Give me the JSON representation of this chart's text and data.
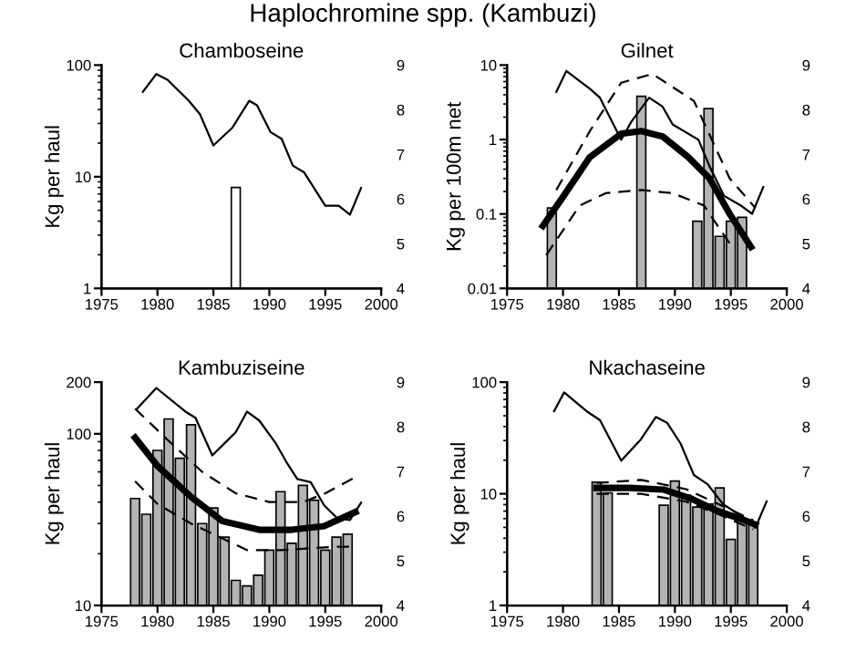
{
  "chart_data": [
    {
      "type": "bar",
      "title": "Haplochromine spp. (Kambuzi)",
      "subtitle": "Chamboseine",
      "ylabel": "Kg per haul",
      "log": "y",
      "xlim": [
        1975,
        2000
      ],
      "xticks": [
        1975,
        1980,
        1985,
        1990,
        1995,
        2000
      ],
      "ylim": [
        1,
        100
      ],
      "yticks": [
        1,
        10,
        100
      ],
      "y2lim": [
        4,
        9
      ],
      "y2ticks": [
        4,
        5,
        6,
        7,
        8,
        9
      ],
      "series": [
        {
          "color": "#ffffff",
          "x": [
            1987
          ],
          "values": [
            8
          ]
        },
        {
          "type": "line",
          "axis": "y2",
          "color": "#000000",
          "x": [
            1978.7,
            1979.9,
            1980.9,
            1982.8,
            1983.8,
            1985.0,
            1986.7,
            1987.2,
            1988.2,
            1988.9,
            1990.1,
            1991.1,
            1992.1,
            1993.1,
            1995.0,
            1996.2,
            1997.2,
            1998.2
          ],
          "values": [
            8.4,
            8.8,
            8.67,
            8.2,
            7.9,
            7.2,
            7.6,
            7.8,
            8.2,
            8.1,
            7.5,
            7.35,
            6.75,
            6.6,
            5.85,
            5.85,
            5.65,
            6.25
          ]
        }
      ]
    },
    {
      "type": "bar",
      "subtitle": "Gilnet",
      "ylabel": "Kg per 100m net",
      "log": "y",
      "xlim": [
        1975,
        2000
      ],
      "xticks": [
        1975,
        1980,
        1985,
        1990,
        1995,
        2000
      ],
      "ylim": [
        0.01,
        10
      ],
      "yticks": [
        0.01,
        0.1,
        1,
        10
      ],
      "y2lim": [
        4,
        9
      ],
      "y2ticks": [
        4,
        5,
        6,
        7,
        8,
        9
      ],
      "series": [
        {
          "color": "#b4b4b4",
          "x": [
            1979,
            1987,
            1992,
            1993,
            1994,
            1995,
            1996
          ],
          "values": [
            0.12,
            3.8,
            0.08,
            2.6,
            0.05,
            0.08,
            0.09
          ]
        },
        {
          "type": "line",
          "axis": "y2",
          "color": "#000000",
          "x": [
            1979.4,
            1980.3,
            1982.4,
            1983.3,
            1985.2,
            1986.1,
            1987.7,
            1988.9,
            1989.8,
            1992.1,
            1993.1,
            1994.4,
            1995.8,
            1996.9,
            1997.9
          ],
          "values": [
            8.4,
            8.87,
            8.47,
            8.27,
            7.33,
            7.73,
            8.27,
            8.07,
            7.67,
            7.33,
            6.73,
            6.07,
            5.87,
            5.67,
            6.27
          ]
        },
        {
          "type": "line",
          "line_style": "dashed",
          "color": "#000000",
          "x": [
            1979.4,
            1982.4,
            1985.2,
            1988,
            1991.7,
            1994.9,
            1997.2
          ],
          "values": [
            0.21,
            1.3,
            5.8,
            7.6,
            3.3,
            0.3,
            0.12
          ]
        },
        {
          "type": "line",
          "line_style": "dashed",
          "color": "#000000",
          "x": [
            1978.5,
            1981.5,
            1983.8,
            1987,
            1989.8,
            1992.6,
            1994.9
          ],
          "values": [
            0.028,
            0.13,
            0.19,
            0.21,
            0.19,
            0.13,
            0.04
          ]
        },
        {
          "type": "line",
          "color": "#000000",
          "x": [
            1978.2,
            1980,
            1982.4,
            1985.2,
            1987,
            1988.9,
            1991.2,
            1993.1,
            1994.9,
            1996.8
          ],
          "values": [
            0.069,
            0.17,
            0.58,
            1.2,
            1.3,
            1.1,
            0.58,
            0.3,
            0.1,
            0.036
          ]
        }
      ]
    },
    {
      "type": "bar",
      "subtitle": "Kambuziseine",
      "ylabel": "Kg per haul",
      "log": "y",
      "xlim": [
        1975,
        2000
      ],
      "xticks": [
        1975,
        1980,
        1985,
        1990,
        1995,
        2000
      ],
      "ylim": [
        10,
        200
      ],
      "yticks": [
        10,
        100,
        200
      ],
      "y2lim": [
        4,
        9
      ],
      "y2ticks": [
        4,
        5,
        6,
        7,
        8,
        9
      ],
      "series": [
        {
          "color": "#b4b4b4",
          "x": [
            1978,
            1979,
            1980,
            1981,
            1982,
            1983,
            1984,
            1985,
            1986,
            1987,
            1988,
            1989,
            1990,
            1991,
            1992,
            1993,
            1994,
            1995,
            1996,
            1997
          ],
          "values": [
            42,
            34,
            80,
            122,
            72,
            113,
            30,
            37,
            25,
            14,
            13,
            15,
            21,
            46,
            23,
            50,
            41,
            21,
            25,
            26
          ]
        },
        {
          "type": "line",
          "axis": "y2",
          "color": "#000000",
          "x": [
            1978.2,
            1979.9,
            1982.5,
            1983.4,
            1984.9,
            1987,
            1988,
            1989.1,
            1990.6,
            1991.5,
            1992.5,
            1993.7,
            1994.9,
            1996,
            1997.2,
            1998.2
          ],
          "values": [
            8.41,
            8.87,
            8.34,
            8.2,
            7.36,
            7.88,
            8.34,
            8.14,
            7.62,
            7.22,
            6.83,
            6.76,
            6.24,
            5.97,
            5.91,
            6.3
          ]
        },
        {
          "type": "line",
          "line_style": "dashed",
          "color": "#000000",
          "x": [
            1978,
            1981,
            1984,
            1987,
            1990,
            1993,
            1995,
            1997.5
          ],
          "values": [
            140,
            91,
            60,
            45,
            40,
            40,
            45,
            55
          ]
        },
        {
          "type": "line",
          "line_style": "dashed",
          "color": "#000000",
          "x": [
            1978,
            1980,
            1983,
            1988,
            1991,
            1996,
            1997.2
          ],
          "values": [
            53,
            39,
            30,
            21,
            21,
            22,
            22
          ]
        },
        {
          "type": "line",
          "color": "#000000",
          "x": [
            1978,
            1980,
            1983,
            1985.8,
            1989.1,
            1992,
            1994.9,
            1997.7
          ],
          "values": [
            95,
            65,
            43,
            31,
            27.6,
            27.6,
            29,
            35
          ]
        }
      ]
    },
    {
      "type": "bar",
      "subtitle": "Nkachaseine",
      "ylabel": "Kg per haul",
      "log": "y",
      "xlim": [
        1975,
        2000
      ],
      "xticks": [
        1975,
        1980,
        1985,
        1990,
        1995,
        2000
      ],
      "ylim": [
        1,
        100
      ],
      "yticks": [
        1,
        10,
        100
      ],
      "y2lim": [
        4,
        9
      ],
      "y2ticks": [
        4,
        5,
        6,
        7,
        8,
        9
      ],
      "series": [
        {
          "color": "#b4b4b4",
          "x": [
            1983,
            1984,
            1989,
            1990,
            1991,
            1992,
            1993,
            1994,
            1995,
            1996,
            1997
          ],
          "values": [
            12.7,
            10.2,
            7.9,
            13,
            9.7,
            7.6,
            8.1,
            11.3,
            3.9,
            6.0,
            5.3
          ]
        },
        {
          "type": "line",
          "axis": "y2",
          "color": "#000000",
          "x": [
            1979.2,
            1980.1,
            1982.1,
            1983.3,
            1985.2,
            1986.9,
            1988.3,
            1989.3,
            1990.5,
            1991.7,
            1992.9,
            1994.3,
            1996.3,
            1997.2,
            1998.2
          ],
          "values": [
            8.35,
            8.77,
            8.35,
            8.15,
            7.24,
            7.7,
            8.22,
            8.09,
            7.63,
            6.92,
            6.72,
            6.27,
            5.94,
            5.74,
            6.33
          ]
        },
        {
          "type": "line",
          "line_style": "dashed",
          "color": "#000000",
          "x": [
            1983,
            1987,
            1991,
            1994,
            1997
          ],
          "values": [
            12.5,
            13.3,
            11,
            8,
            5.8
          ]
        },
        {
          "type": "line",
          "line_style": "dashed",
          "color": "#000000",
          "x": [
            1983,
            1987,
            1991,
            1994,
            1997
          ],
          "values": [
            10,
            10,
            8.5,
            6.5,
            4.8
          ]
        },
        {
          "type": "line",
          "color": "#000000",
          "x": [
            1983,
            1986,
            1989,
            1991.4,
            1993.8,
            1995.8,
            1997.2
          ],
          "values": [
            11.3,
            11.3,
            10.9,
            9.1,
            7.0,
            6.0,
            5.3
          ]
        }
      ]
    }
  ]
}
